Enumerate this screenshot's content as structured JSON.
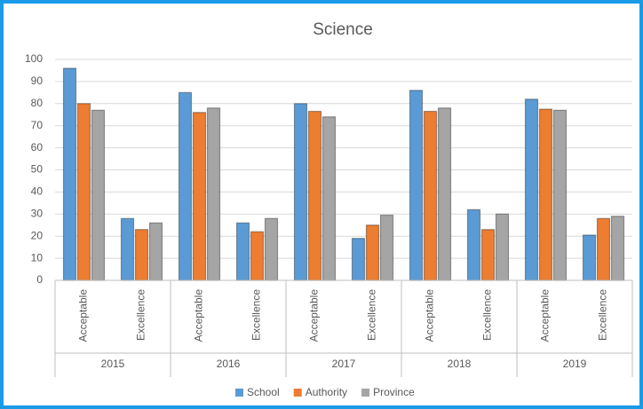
{
  "chart_data": {
    "type": "bar",
    "title": "Science",
    "categories": [
      "Acceptable",
      "Excellence",
      "Acceptable",
      "Excellence",
      "Acceptable",
      "Excellence",
      "Acceptable",
      "Excellence",
      "Acceptable",
      "Excellence"
    ],
    "groups": [
      "2015",
      "2016",
      "2017",
      "2018",
      "2019"
    ],
    "series": [
      {
        "name": "School",
        "color": "#5b9bd5",
        "values": [
          96,
          28,
          85,
          26,
          80,
          19,
          86,
          32,
          82,
          20.5
        ]
      },
      {
        "name": "Authority",
        "color": "#ed7d31",
        "values": [
          80,
          23,
          76,
          22,
          76.5,
          25,
          76.5,
          23,
          77.5,
          28
        ]
      },
      {
        "name": "Province",
        "color": "#a5a5a5",
        "values": [
          77,
          26,
          78,
          28,
          74,
          29.5,
          78,
          30,
          77,
          29
        ]
      }
    ],
    "ylim": [
      0,
      100
    ],
    "yticks": [
      0,
      10,
      20,
      30,
      40,
      50,
      60,
      70,
      80,
      90,
      100
    ],
    "grid": true,
    "legend": "bottom"
  }
}
